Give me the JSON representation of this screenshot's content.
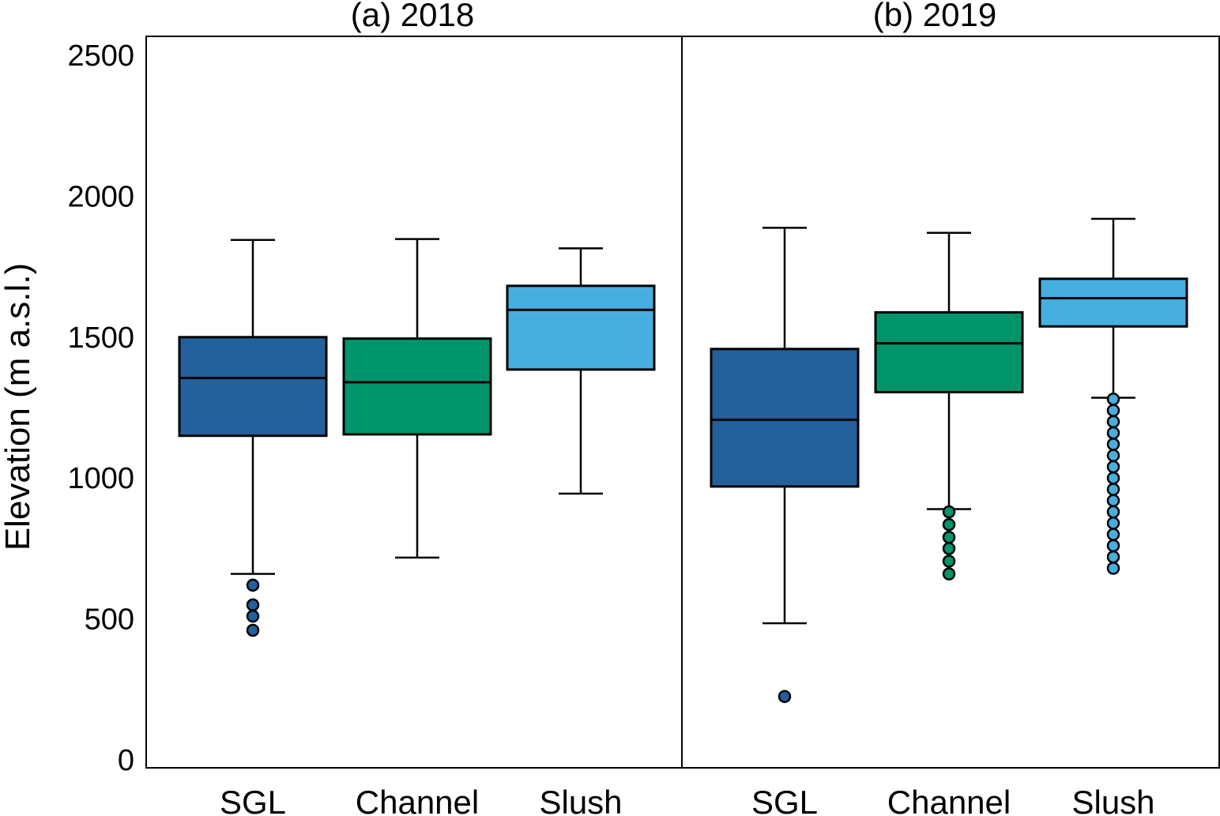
{
  "chart_data": {
    "type": "box",
    "ylabel": "Elevation (m a.s.l.)",
    "ylim": [
      0,
      2600
    ],
    "yticks": [
      0,
      500,
      1000,
      1500,
      2000,
      2500
    ],
    "grid": false,
    "colors": {
      "SGL": "#23609c",
      "Channel": "#00946b",
      "Slush": "#47afe0"
    },
    "panels": [
      {
        "title": "(a) 2018",
        "boxes": [
          {
            "category": "SGL",
            "whisker_low": 660,
            "q1": 1150,
            "median": 1355,
            "q3": 1500,
            "whisker_high": 1845,
            "outliers": [
              620,
              550,
              510,
              460
            ]
          },
          {
            "category": "Channel",
            "whisker_low": 718,
            "q1": 1155,
            "median": 1340,
            "q3": 1495,
            "whisker_high": 1848,
            "outliers": []
          },
          {
            "category": "Slush",
            "whisker_low": 945,
            "q1": 1385,
            "median": 1597,
            "q3": 1682,
            "whisker_high": 1815,
            "outliers": []
          }
        ]
      },
      {
        "title": "(b) 2019",
        "boxes": [
          {
            "category": "SGL",
            "whisker_low": 485,
            "q1": 970,
            "median": 1207,
            "q3": 1458,
            "whisker_high": 1888,
            "outliers": [
              225
            ]
          },
          {
            "category": "Channel",
            "whisker_low": 890,
            "q1": 1305,
            "median": 1478,
            "q3": 1588,
            "whisker_high": 1870,
            "outliers": [
              880,
              835,
              790,
              750,
              705,
              660
            ]
          },
          {
            "category": "Slush",
            "whisker_low": 1285,
            "q1": 1538,
            "median": 1638,
            "q3": 1707,
            "whisker_high": 1920,
            "outliers": [
              1280,
              1240,
              1200,
              1160,
              1120,
              1080,
              1040,
              1000,
              960,
              920,
              880,
              840,
              800,
              760,
              720,
              680
            ]
          }
        ]
      }
    ]
  }
}
